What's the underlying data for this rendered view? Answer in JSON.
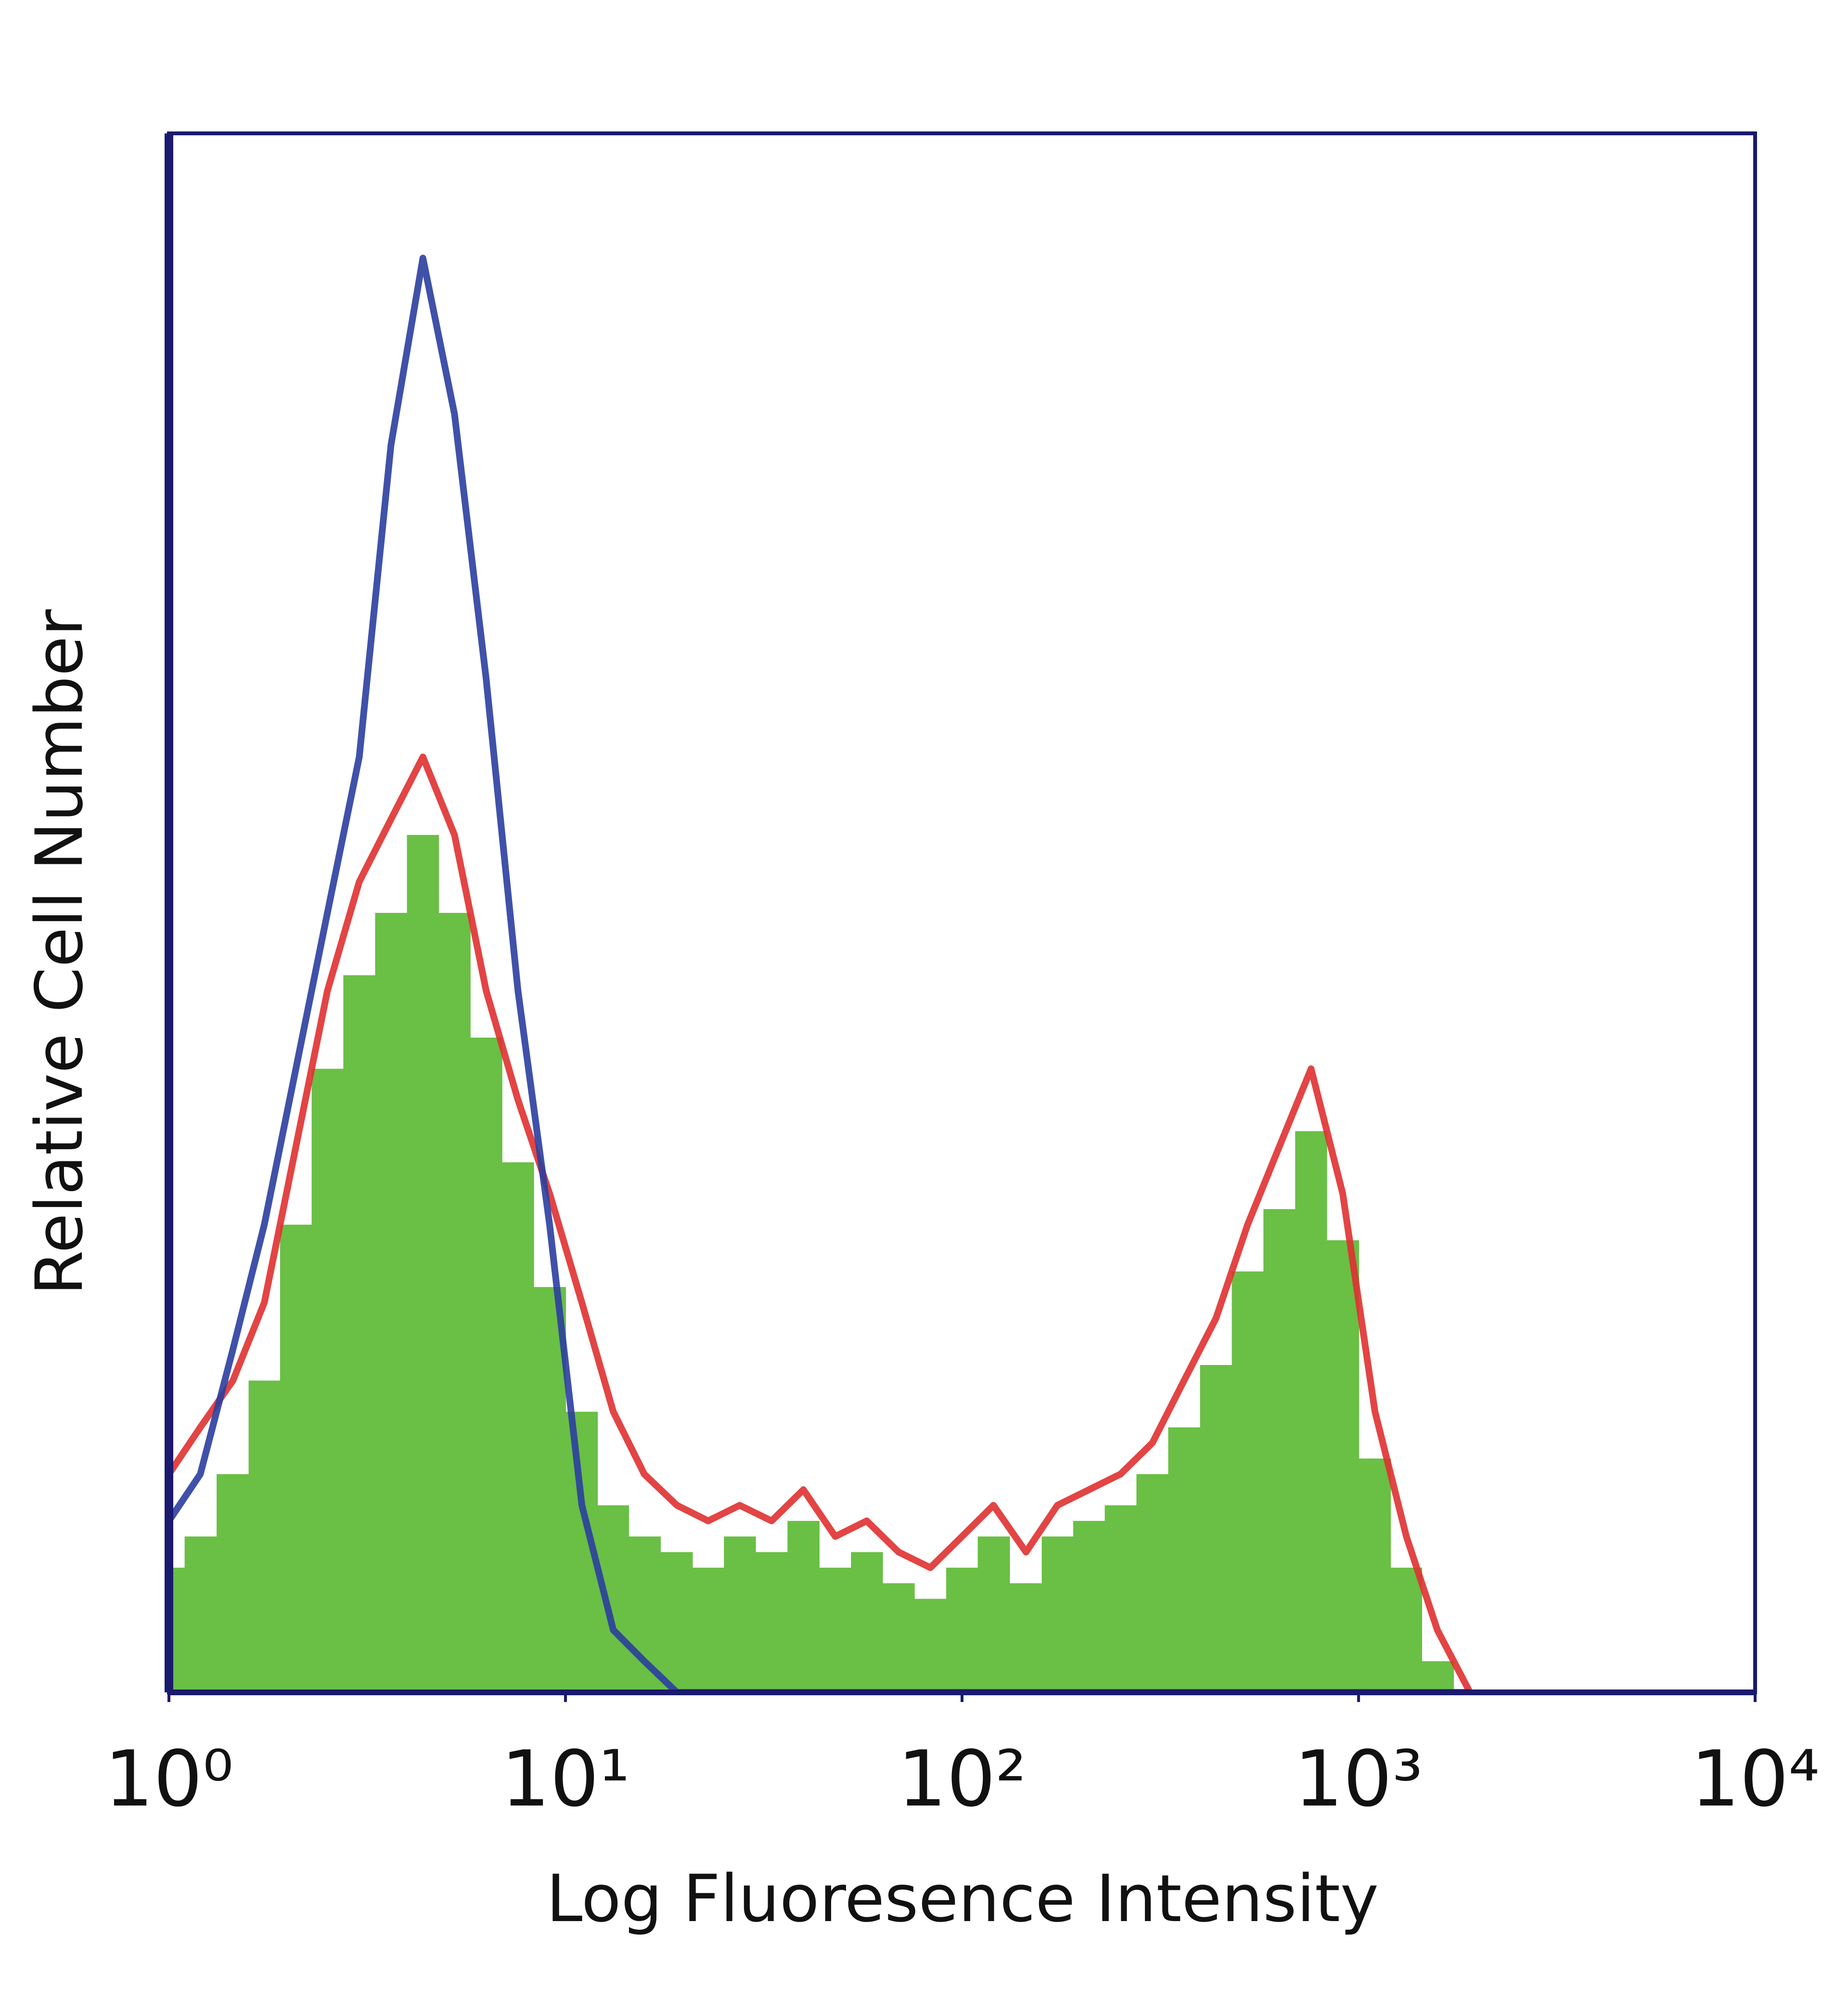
{
  "chart_data": {
    "type": "histogram",
    "x_label": "Log Fluoresence Intensity",
    "y_label": "Relative Cell Number",
    "x_scale": "log",
    "xlim": [
      1,
      10000
    ],
    "ylim": [
      0,
      100
    ],
    "xticks": [
      {
        "value": 1,
        "label": "10⁰"
      },
      {
        "value": 10,
        "label": "10¹"
      },
      {
        "value": 100,
        "label": "10²"
      },
      {
        "value": 1000,
        "label": "10³"
      },
      {
        "value": 10000,
        "label": "10⁴"
      }
    ],
    "x": [
      1,
      1.2,
      1.45,
      1.74,
      2.09,
      2.51,
      3.02,
      3.63,
      4.37,
      5.25,
      6.31,
      7.59,
      9.12,
      11.0,
      13.2,
      15.8,
      19.1,
      22.9,
      27.5,
      33.1,
      39.8,
      47.9,
      57.5,
      69.2,
      83.2,
      100,
      120,
      145,
      174,
      209,
      251,
      302,
      363,
      437,
      525,
      631,
      759,
      912,
      1100,
      1320,
      1580,
      1910
    ],
    "series": [
      {
        "color": "#6abf45",
        "style": "filled",
        "values": [
          8,
          10,
          14,
          20,
          30,
          40,
          46,
          50,
          55,
          50,
          42,
          34,
          26,
          18,
          12,
          10,
          9,
          8,
          10,
          9,
          11,
          8,
          9,
          7,
          6,
          8,
          10,
          7,
          10,
          11,
          12,
          14,
          17,
          21,
          27,
          31,
          36,
          29,
          15,
          8,
          2,
          0
        ]
      },
      {
        "color": "#e03030",
        "style": "outline",
        "values": [
          14,
          17,
          20,
          25,
          35,
          45,
          52,
          56,
          60,
          55,
          45,
          38,
          32,
          25,
          18,
          14,
          12,
          11,
          12,
          11,
          13,
          10,
          11,
          9,
          8,
          10,
          12,
          9,
          12,
          13,
          14,
          16,
          20,
          24,
          30,
          35,
          40,
          32,
          18,
          10,
          4,
          0
        ]
      },
      {
        "color": "#2b3ea0",
        "style": "outline",
        "values": [
          11,
          14,
          22,
          30,
          40,
          50,
          60,
          80,
          92,
          82,
          65,
          45,
          30,
          12,
          4,
          2,
          0,
          0,
          0,
          0,
          0,
          0,
          0,
          0,
          0,
          0,
          0,
          0,
          0,
          0,
          0,
          0,
          0,
          0,
          0,
          0,
          0,
          0,
          0,
          0,
          0,
          0
        ]
      }
    ]
  }
}
